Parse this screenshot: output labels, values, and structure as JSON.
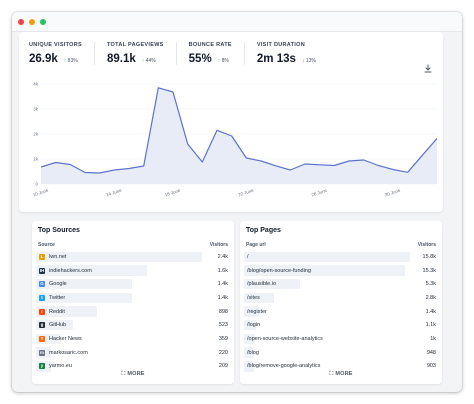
{
  "stats": [
    {
      "label": "UNIQUE VISITORS",
      "value": "26.9k",
      "arrow": "↑",
      "change": "83%",
      "dir": "up"
    },
    {
      "label": "TOTAL PAGEVIEWS",
      "value": "89.1k",
      "arrow": "↑",
      "change": "44%",
      "dir": "up"
    },
    {
      "label": "BOUNCE RATE",
      "value": "55%",
      "arrow": "↑",
      "change": "8%",
      "dir": "up"
    },
    {
      "label": "VISIT DURATION",
      "value": "2m 13s",
      "arrow": "↓",
      "change": "13%",
      "dir": "down"
    }
  ],
  "icons": {
    "download": "download-icon",
    "expand": "expand-icon"
  },
  "colors": {
    "line": "#5b73c9",
    "fill": "#e8ecf7",
    "bar": "#eef2f7"
  },
  "chart_data": {
    "type": "area",
    "y_ticks": [
      "0",
      "1k",
      "2k",
      "3k",
      "4k"
    ],
    "ylim": [
      0,
      4000
    ],
    "x_ticks": [
      {
        "label": "10 June",
        "index": 0
      },
      {
        "label": "14 June",
        "index": 5
      },
      {
        "label": "18 June",
        "index": 9
      },
      {
        "label": "22 June",
        "index": 14
      },
      {
        "label": "26 June",
        "index": 19
      },
      {
        "label": "30 June",
        "index": 24
      },
      {
        "label": "4 July",
        "index": 29
      }
    ],
    "values": [
      680,
      860,
      780,
      460,
      440,
      560,
      620,
      720,
      3850,
      3680,
      1600,
      880,
      2150,
      1920,
      1040,
      920,
      730,
      560,
      800,
      770,
      740,
      920,
      960,
      740,
      580,
      470,
      1150,
      1820
    ]
  },
  "sources": {
    "title": "Top Sources",
    "col_left": "Source",
    "col_right": "Visitors",
    "more": "MORE",
    "items": [
      {
        "label": "lwn.net",
        "value": "2.4k",
        "fraction": 1.0,
        "icon": "lwn-icon",
        "color": "#e5a000",
        "glyph": "L"
      },
      {
        "label": "indiehackers.com",
        "value": "1.6k",
        "fraction": 0.67,
        "icon": "indiehackers-icon",
        "color": "#1f364d",
        "glyph": "IH"
      },
      {
        "label": "Google",
        "value": "1.4k",
        "fraction": 0.58,
        "icon": "google-icon",
        "color": "#4285f4",
        "glyph": "G"
      },
      {
        "label": "Twitter",
        "value": "1.4k",
        "fraction": 0.58,
        "icon": "twitter-icon",
        "color": "#1da1f2",
        "glyph": "t"
      },
      {
        "label": "Reddit",
        "value": "898",
        "fraction": 0.37,
        "icon": "reddit-icon",
        "color": "#ff4500",
        "glyph": "r"
      },
      {
        "label": "GitHub",
        "value": "523",
        "fraction": 0.22,
        "icon": "github-icon",
        "color": "#24292e",
        "glyph": "g"
      },
      {
        "label": "Hacker News",
        "value": "359",
        "fraction": 0.15,
        "icon": "hackernews-icon",
        "color": "#ff6600",
        "glyph": "Y"
      },
      {
        "label": "markosaric.com",
        "value": "220",
        "fraction": 0.09,
        "icon": "markosaric-icon",
        "color": "#6b7280",
        "glyph": "m"
      },
      {
        "label": "yarmo.eu",
        "value": "209",
        "fraction": 0.09,
        "icon": "yarmo-icon",
        "color": "#15803d",
        "glyph": "y"
      }
    ]
  },
  "pages": {
    "title": "Top Pages",
    "col_left": "Page url",
    "col_right": "Visitors",
    "more": "MORE",
    "items": [
      {
        "label": "/",
        "value": "15.8k",
        "fraction": 1.0
      },
      {
        "label": "/blog/open-source-funding",
        "value": "15.3k",
        "fraction": 0.97
      },
      {
        "label": "/plausible.io",
        "value": "5.3k",
        "fraction": 0.34
      },
      {
        "label": "/sites",
        "value": "2.8k",
        "fraction": 0.18
      },
      {
        "label": "/register",
        "value": "1.4k",
        "fraction": 0.09
      },
      {
        "label": "/login",
        "value": "1.1k",
        "fraction": 0.07
      },
      {
        "label": "/open-source-website-analytics",
        "value": "1k",
        "fraction": 0.065
      },
      {
        "label": "/blog",
        "value": "948",
        "fraction": 0.06
      },
      {
        "label": "/blog/remove-google-analytics",
        "value": "903",
        "fraction": 0.057
      }
    ]
  }
}
